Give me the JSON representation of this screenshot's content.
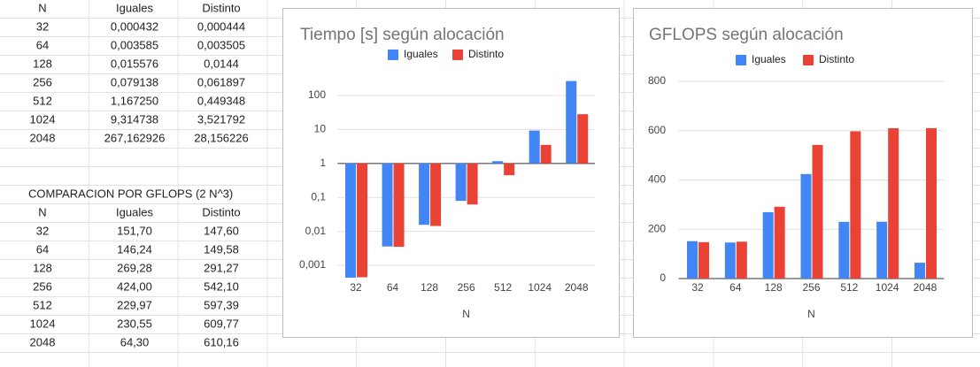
{
  "table1": {
    "header": [
      "N",
      "Iguales",
      "Distinto"
    ],
    "rows": [
      [
        "32",
        "0,000432",
        "0,000444"
      ],
      [
        "64",
        "0,003585",
        "0,003505"
      ],
      [
        "128",
        "0,015576",
        "0,0144"
      ],
      [
        "256",
        "0,079138",
        "0,061897"
      ],
      [
        "512",
        "1,167250",
        "0,449348"
      ],
      [
        "1024",
        "9,314738",
        "3,521792"
      ],
      [
        "2048",
        "267,162926",
        "28,156226"
      ]
    ]
  },
  "table2": {
    "title": "COMPARACION POR GFLOPS (2 N^3)",
    "header": [
      "N",
      "Iguales",
      "Distinto"
    ],
    "rows": [
      [
        "32",
        "151,70",
        "147,60"
      ],
      [
        "64",
        "146,24",
        "149,58"
      ],
      [
        "128",
        "269,28",
        "291,27"
      ],
      [
        "256",
        "424,00",
        "542,10"
      ],
      [
        "512",
        "229,97",
        "597,39"
      ],
      [
        "1024",
        "230,55",
        "609,77"
      ],
      [
        "2048",
        "64,30",
        "610,16"
      ]
    ]
  },
  "chart_data": [
    {
      "type": "bar",
      "title": "Tiempo [s] según alocación",
      "x_label": "N",
      "categories": [
        "32",
        "64",
        "128",
        "256",
        "512",
        "1024",
        "2048"
      ],
      "series": [
        {
          "name": "Iguales",
          "color": "#4285f4",
          "values": [
            0.000432,
            0.003585,
            0.015576,
            0.079138,
            1.16725,
            9.314738,
            267.162926
          ]
        },
        {
          "name": "Distinto",
          "color": "#ea4335",
          "values": [
            0.000444,
            0.003505,
            0.0144,
            0.061897,
            0.449348,
            3.521792,
            28.156226
          ]
        }
      ],
      "log_scale": true,
      "ylim": [
        0.0004,
        300
      ],
      "yticks": [
        {
          "value": 0.001,
          "label": "0,001"
        },
        {
          "value": 0.01,
          "label": "0,01"
        },
        {
          "value": 0.1,
          "label": "0,1"
        },
        1,
        10,
        100
      ],
      "grid": true,
      "legend": "top"
    },
    {
      "type": "bar",
      "title": "GFLOPS según alocación",
      "x_label": "N",
      "categories": [
        "32",
        "64",
        "128",
        "256",
        "512",
        "1024",
        "2048"
      ],
      "series": [
        {
          "name": "Iguales",
          "color": "#4285f4",
          "values": [
            151.7,
            146.24,
            269.28,
            424.0,
            229.97,
            230.55,
            64.3
          ]
        },
        {
          "name": "Distinto",
          "color": "#ea4335",
          "values": [
            147.6,
            149.58,
            291.27,
            542.1,
            597.39,
            609.77,
            610.16
          ]
        }
      ],
      "log_scale": false,
      "ylim": [
        0,
        800
      ],
      "yticks": [
        0,
        200,
        400,
        600,
        800
      ],
      "grid": true,
      "legend": "top"
    }
  ]
}
